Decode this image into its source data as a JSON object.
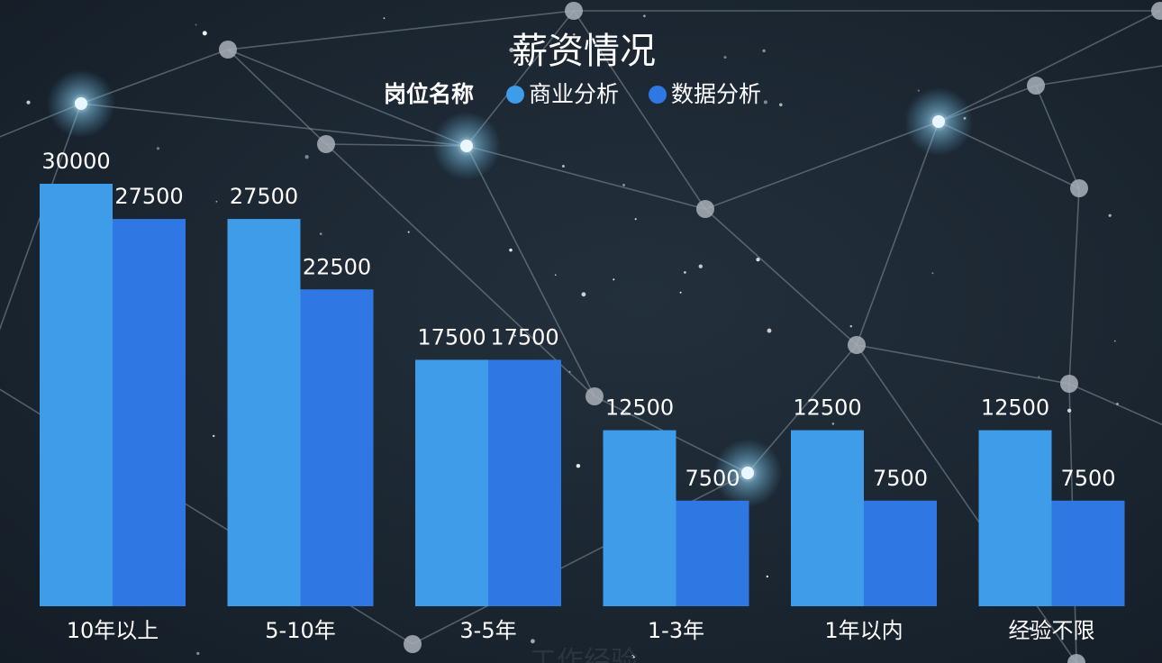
{
  "chart_data": {
    "type": "bar",
    "title": "薪资情况",
    "legend_title": "岗位名称",
    "legend_position": "top-center",
    "xlabel": "工作经验",
    "ylabel": "",
    "categories": [
      "10年以上",
      "5-10年",
      "3-5年",
      "1-3年",
      "1年以内",
      "经验不限"
    ],
    "series": [
      {
        "name": "商业分析",
        "color": "#3f9ce8",
        "values": [
          30000,
          27500,
          17500,
          12500,
          12500,
          12500
        ]
      },
      {
        "name": "数据分析",
        "color": "#2f78e3",
        "values": [
          27500,
          22500,
          17500,
          7500,
          7500,
          7500
        ]
      }
    ],
    "ylim": [
      0,
      30000
    ],
    "grid": false
  }
}
